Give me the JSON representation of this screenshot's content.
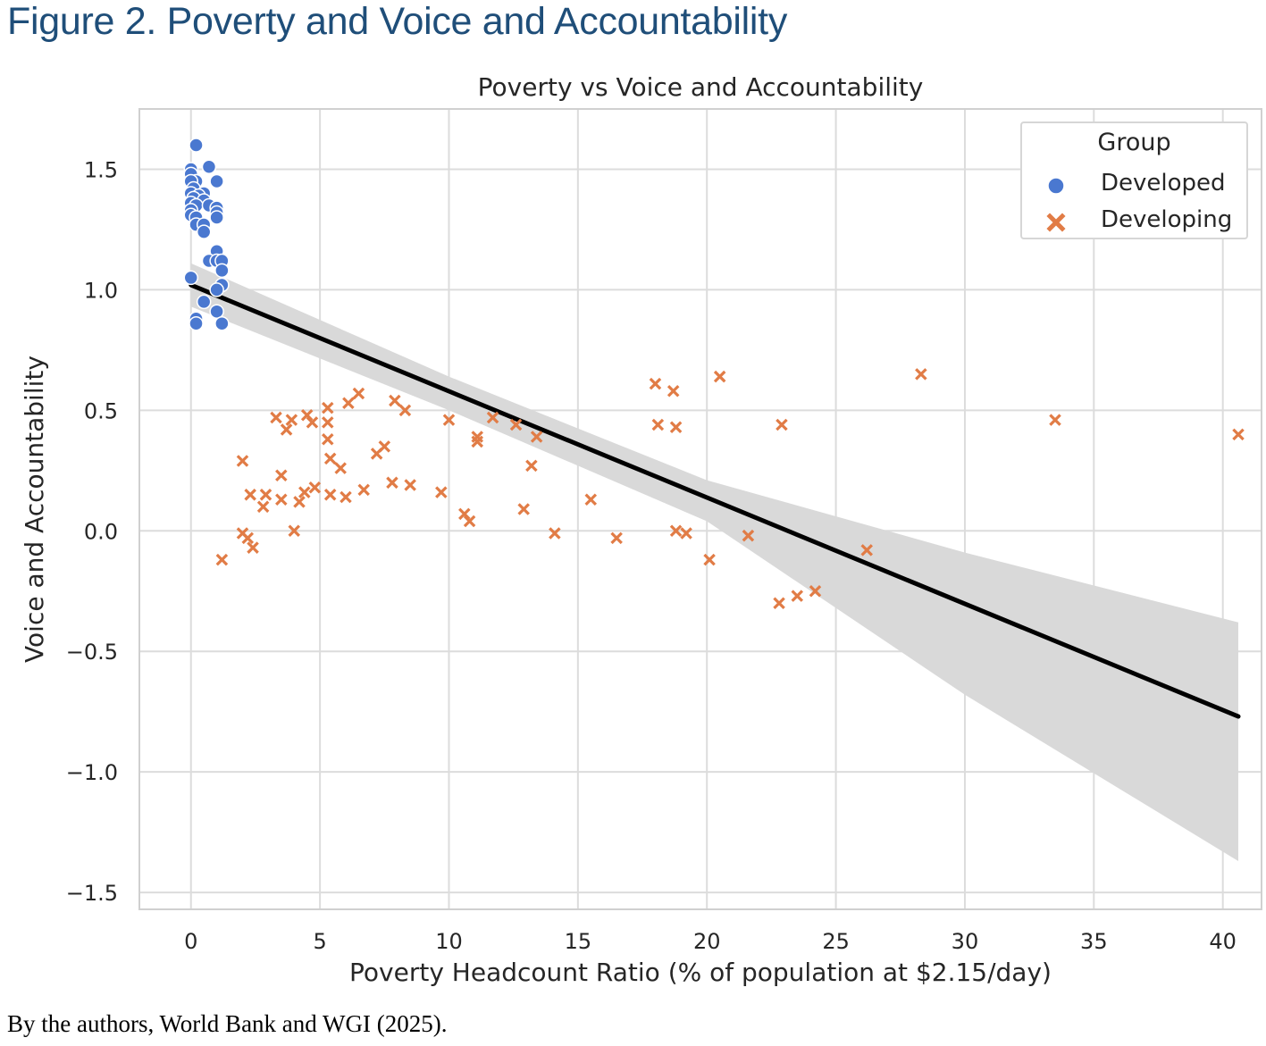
{
  "figure_title": "Figure 2. Poverty and Voice and Accountability",
  "source_note": "By the authors, World Bank and WGI (2025).",
  "colors": {
    "developed": "#4a78d0",
    "developing": "#e17c46",
    "regression": "#000000",
    "ci_band": "#d9d9d9",
    "grid": "#dcdcdc",
    "title": "#1f4e79"
  },
  "chart_data": {
    "type": "scatter",
    "title": "Poverty vs Voice and Accountability",
    "xlabel": "Poverty Headcount Ratio (% of population at $2.15/day)",
    "ylabel": "Voice and Accountability",
    "xlim": [
      -2,
      41.5
    ],
    "ylim": [
      -1.57,
      1.75
    ],
    "xticks": [
      0,
      5,
      10,
      15,
      20,
      25,
      30,
      35,
      40
    ],
    "yticks": [
      1.5,
      1.0,
      0.5,
      0.0,
      -0.5,
      -1.0,
      -1.5
    ],
    "xtick_labels": [
      "0",
      "5",
      "10",
      "15",
      "20",
      "25",
      "30",
      "35",
      "40"
    ],
    "ytick_labels": [
      "1.5",
      "1.0",
      "0.5",
      "0.0",
      "−0.5",
      "−1.0",
      "−1.5"
    ],
    "grid": true,
    "legend": {
      "title": "Group",
      "placement": "top-right"
    },
    "series": [
      {
        "name": "Developed",
        "marker": "circle",
        "points": [
          [
            0.2,
            1.6
          ],
          [
            0.0,
            1.5
          ],
          [
            0.7,
            1.51
          ],
          [
            0.0,
            1.48
          ],
          [
            0.2,
            1.45
          ],
          [
            0.0,
            1.45
          ],
          [
            1.0,
            1.45
          ],
          [
            0.1,
            1.42
          ],
          [
            0.0,
            1.4
          ],
          [
            0.5,
            1.4
          ],
          [
            0.3,
            1.39
          ],
          [
            0.1,
            1.38
          ],
          [
            0.5,
            1.37
          ],
          [
            0.0,
            1.36
          ],
          [
            0.2,
            1.35
          ],
          [
            0.7,
            1.35
          ],
          [
            1.0,
            1.34
          ],
          [
            0.0,
            1.33
          ],
          [
            1.0,
            1.32
          ],
          [
            0.0,
            1.31
          ],
          [
            0.2,
            1.3
          ],
          [
            1.0,
            1.3
          ],
          [
            0.2,
            1.27
          ],
          [
            0.5,
            1.27
          ],
          [
            0.5,
            1.24
          ],
          [
            1.0,
            1.16
          ],
          [
            0.7,
            1.12
          ],
          [
            1.0,
            1.12
          ],
          [
            1.2,
            1.12
          ],
          [
            1.2,
            1.08
          ],
          [
            0.0,
            1.05
          ],
          [
            1.2,
            1.02
          ],
          [
            1.0,
            1.0
          ],
          [
            0.5,
            0.95
          ],
          [
            1.0,
            0.91
          ],
          [
            0.2,
            0.88
          ],
          [
            0.2,
            0.86
          ],
          [
            1.2,
            0.86
          ]
        ]
      },
      {
        "name": "Developing",
        "marker": "x",
        "points": [
          [
            1.2,
            -0.12
          ],
          [
            2.0,
            0.29
          ],
          [
            2.0,
            -0.01
          ],
          [
            2.2,
            -0.03
          ],
          [
            2.3,
            0.15
          ],
          [
            2.4,
            -0.07
          ],
          [
            2.8,
            0.1
          ],
          [
            2.9,
            0.15
          ],
          [
            3.3,
            0.47
          ],
          [
            3.5,
            0.23
          ],
          [
            3.5,
            0.13
          ],
          [
            3.7,
            0.42
          ],
          [
            3.9,
            0.46
          ],
          [
            4.0,
            0.0
          ],
          [
            4.2,
            0.12
          ],
          [
            4.4,
            0.16
          ],
          [
            4.5,
            0.48
          ],
          [
            4.7,
            0.45
          ],
          [
            4.8,
            0.18
          ],
          [
            5.3,
            0.51
          ],
          [
            5.3,
            0.45
          ],
          [
            5.3,
            0.38
          ],
          [
            5.4,
            0.3
          ],
          [
            5.4,
            0.15
          ],
          [
            5.8,
            0.26
          ],
          [
            6.0,
            0.14
          ],
          [
            6.1,
            0.53
          ],
          [
            6.5,
            0.57
          ],
          [
            6.7,
            0.17
          ],
          [
            7.2,
            0.32
          ],
          [
            7.5,
            0.35
          ],
          [
            7.8,
            0.2
          ],
          [
            7.9,
            0.54
          ],
          [
            8.3,
            0.5
          ],
          [
            8.5,
            0.19
          ],
          [
            9.7,
            0.16
          ],
          [
            10.0,
            0.46
          ],
          [
            10.6,
            0.07
          ],
          [
            10.8,
            0.04
          ],
          [
            11.1,
            0.39
          ],
          [
            11.1,
            0.37
          ],
          [
            11.7,
            0.47
          ],
          [
            12.6,
            0.44
          ],
          [
            12.9,
            0.09
          ],
          [
            13.2,
            0.27
          ],
          [
            13.4,
            0.39
          ],
          [
            14.1,
            -0.01
          ],
          [
            15.5,
            0.13
          ],
          [
            16.5,
            -0.03
          ],
          [
            18.0,
            0.61
          ],
          [
            18.1,
            0.44
          ],
          [
            18.7,
            0.58
          ],
          [
            18.8,
            0.43
          ],
          [
            18.8,
            0.0
          ],
          [
            19.2,
            -0.01
          ],
          [
            20.1,
            -0.12
          ],
          [
            20.5,
            0.64
          ],
          [
            21.6,
            -0.02
          ],
          [
            22.8,
            -0.3
          ],
          [
            22.9,
            0.44
          ],
          [
            23.5,
            -0.27
          ],
          [
            24.2,
            -0.25
          ],
          [
            26.2,
            -0.08
          ],
          [
            28.3,
            0.65
          ],
          [
            33.5,
            0.46
          ],
          [
            40.6,
            0.4
          ]
        ]
      }
    ],
    "regression": {
      "x": [
        0,
        40.6
      ],
      "y": [
        1.02,
        -0.77
      ]
    },
    "confidence_band": {
      "x": [
        0,
        10,
        20,
        30,
        40.6
      ],
      "upper": [
        1.11,
        0.64,
        0.21,
        -0.09,
        -0.38
      ],
      "lower": [
        0.93,
        0.5,
        0.04,
        -0.68,
        -1.37
      ]
    }
  }
}
